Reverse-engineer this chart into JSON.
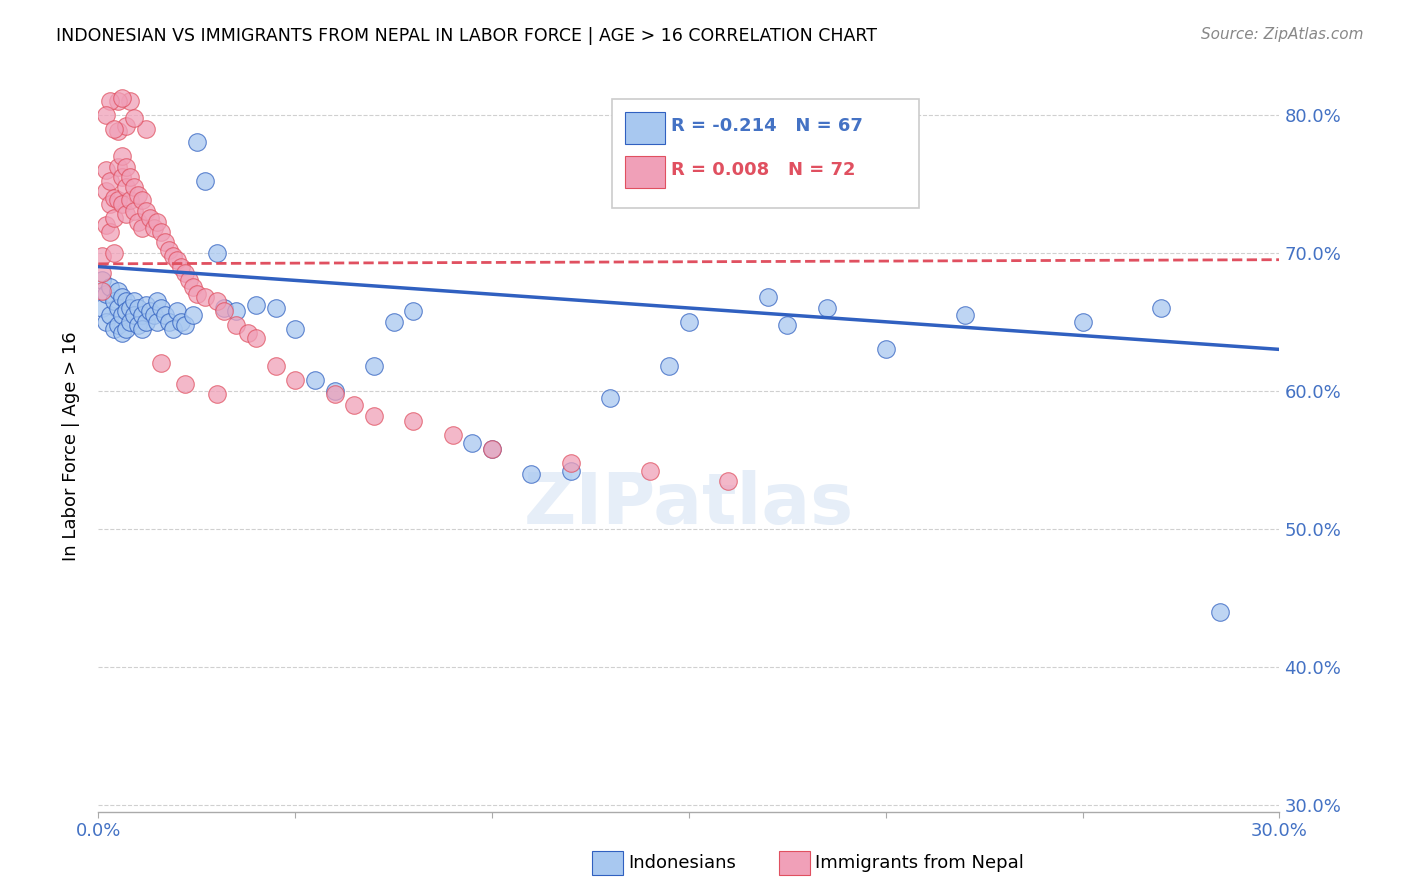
{
  "title": "INDONESIAN VS IMMIGRANTS FROM NEPAL IN LABOR FORCE | AGE > 16 CORRELATION CHART",
  "source": "Source: ZipAtlas.com",
  "ylabel": "In Labor Force | Age > 16",
  "legend_blue_r": "R = -0.214",
  "legend_blue_n": "N = 67",
  "legend_pink_r": "R = 0.008",
  "legend_pink_n": "N = 72",
  "legend_label1": "Indonesians",
  "legend_label2": "Immigrants from Nepal",
  "xmin": 0.0,
  "xmax": 0.3,
  "ymin": 0.295,
  "ymax": 0.825,
  "xticks": [
    0.0,
    0.05,
    0.1,
    0.15,
    0.2,
    0.25,
    0.3
  ],
  "xtick_labels": [
    "0.0%",
    "",
    "",
    "",
    "",
    "",
    "30.0%"
  ],
  "yticks": [
    0.3,
    0.4,
    0.5,
    0.6,
    0.7,
    0.8
  ],
  "ytick_labels": [
    "30.0%",
    "40.0%",
    "50.0%",
    "60.0%",
    "70.0%",
    "80.0%"
  ],
  "color_blue": "#A8C8F0",
  "color_pink": "#F0A0B8",
  "color_blue_line": "#3060C0",
  "color_pink_line": "#E05060",
  "color_axis_labels": "#4472C4",
  "color_grid": "#d0d0d0",
  "blue_trend_x0": 0.0,
  "blue_trend_y0": 0.69,
  "blue_trend_x1": 0.3,
  "blue_trend_y1": 0.63,
  "pink_trend_x0": 0.0,
  "pink_trend_y0": 0.692,
  "pink_trend_x1": 0.3,
  "pink_trend_y1": 0.695,
  "blue_x": [
    0.001,
    0.001,
    0.002,
    0.002,
    0.003,
    0.003,
    0.004,
    0.004,
    0.005,
    0.005,
    0.005,
    0.006,
    0.006,
    0.006,
    0.007,
    0.007,
    0.007,
    0.008,
    0.008,
    0.009,
    0.009,
    0.01,
    0.01,
    0.011,
    0.011,
    0.012,
    0.012,
    0.013,
    0.014,
    0.015,
    0.015,
    0.016,
    0.017,
    0.018,
    0.019,
    0.02,
    0.021,
    0.022,
    0.024,
    0.025,
    0.027,
    0.03,
    0.032,
    0.035,
    0.04,
    0.045,
    0.05,
    0.055,
    0.06,
    0.07,
    0.075,
    0.08,
    0.095,
    0.1,
    0.11,
    0.12,
    0.13,
    0.145,
    0.15,
    0.17,
    0.175,
    0.185,
    0.2,
    0.22,
    0.25,
    0.27,
    0.285
  ],
  "blue_y": [
    0.68,
    0.66,
    0.67,
    0.65,
    0.675,
    0.655,
    0.665,
    0.645,
    0.672,
    0.66,
    0.648,
    0.668,
    0.655,
    0.642,
    0.665,
    0.658,
    0.645,
    0.66,
    0.65,
    0.665,
    0.655,
    0.66,
    0.648,
    0.655,
    0.645,
    0.662,
    0.65,
    0.658,
    0.655,
    0.665,
    0.65,
    0.66,
    0.655,
    0.65,
    0.645,
    0.658,
    0.65,
    0.648,
    0.655,
    0.78,
    0.752,
    0.7,
    0.66,
    0.658,
    0.662,
    0.66,
    0.645,
    0.608,
    0.6,
    0.618,
    0.65,
    0.658,
    0.562,
    0.558,
    0.54,
    0.542,
    0.595,
    0.618,
    0.65,
    0.668,
    0.648,
    0.66,
    0.63,
    0.655,
    0.65,
    0.66,
    0.44
  ],
  "pink_x": [
    0.001,
    0.001,
    0.001,
    0.002,
    0.002,
    0.002,
    0.003,
    0.003,
    0.003,
    0.004,
    0.004,
    0.004,
    0.005,
    0.005,
    0.005,
    0.006,
    0.006,
    0.006,
    0.007,
    0.007,
    0.007,
    0.008,
    0.008,
    0.009,
    0.009,
    0.01,
    0.01,
    0.011,
    0.011,
    0.012,
    0.013,
    0.014,
    0.015,
    0.016,
    0.017,
    0.018,
    0.019,
    0.02,
    0.021,
    0.022,
    0.023,
    0.024,
    0.025,
    0.027,
    0.03,
    0.032,
    0.035,
    0.038,
    0.04,
    0.045,
    0.05,
    0.06,
    0.065,
    0.07,
    0.08,
    0.09,
    0.1,
    0.12,
    0.14,
    0.16,
    0.016,
    0.022,
    0.03,
    0.008,
    0.012,
    0.005,
    0.007,
    0.003,
    0.002,
    0.004,
    0.006,
    0.009
  ],
  "pink_y": [
    0.698,
    0.685,
    0.672,
    0.76,
    0.745,
    0.72,
    0.752,
    0.735,
    0.715,
    0.74,
    0.725,
    0.7,
    0.788,
    0.762,
    0.738,
    0.77,
    0.755,
    0.735,
    0.762,
    0.748,
    0.728,
    0.755,
    0.738,
    0.748,
    0.73,
    0.742,
    0.722,
    0.738,
    0.718,
    0.73,
    0.725,
    0.718,
    0.722,
    0.715,
    0.708,
    0.702,
    0.698,
    0.695,
    0.69,
    0.685,
    0.68,
    0.675,
    0.67,
    0.668,
    0.665,
    0.658,
    0.648,
    0.642,
    0.638,
    0.618,
    0.608,
    0.598,
    0.59,
    0.582,
    0.578,
    0.568,
    0.558,
    0.548,
    0.542,
    0.535,
    0.62,
    0.605,
    0.598,
    0.81,
    0.79,
    0.81,
    0.792,
    0.81,
    0.8,
    0.79,
    0.812,
    0.798
  ]
}
